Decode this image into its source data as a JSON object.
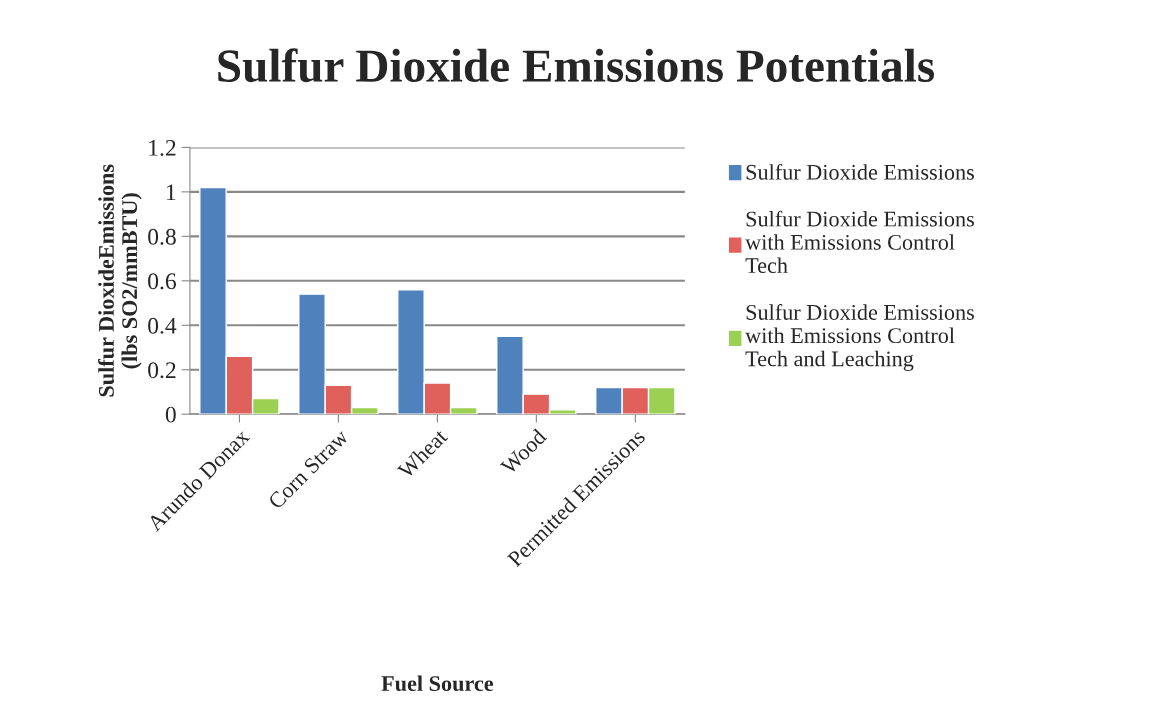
{
  "chart_data": {
    "type": "bar",
    "title": "Sulfur Dioxide Emissions Potentials",
    "xlabel": "Fuel Source",
    "ylabel": "Sulfur DioxideEmissions\n(lbs SO2/mmBTU)",
    "categories": [
      "Arundo Donax",
      "Corn Straw",
      "Wheat",
      "Wood",
      "Permitted Emissions"
    ],
    "series": [
      {
        "name": "Sulfur Dioxide Emissions",
        "color": "#4f81bd",
        "values": [
          1.02,
          0.54,
          0.56,
          0.35,
          0.12
        ]
      },
      {
        "name": "Sulfur Dioxide Emissions\nwith Emissions Control\nTech",
        "color": "#e0605c",
        "values": [
          0.26,
          0.13,
          0.14,
          0.09,
          0.12
        ]
      },
      {
        "name": "Sulfur Dioxide Emissions\nwith Emissions Control\nTech and Leaching",
        "color": "#9bd052",
        "values": [
          0.07,
          0.03,
          0.03,
          0.02,
          0.12
        ]
      }
    ],
    "ylim": [
      0,
      1.2
    ],
    "yticks": [
      0,
      0.2,
      0.4,
      0.6,
      0.8,
      1,
      1.2
    ],
    "grid": "y",
    "legend": "right"
  }
}
